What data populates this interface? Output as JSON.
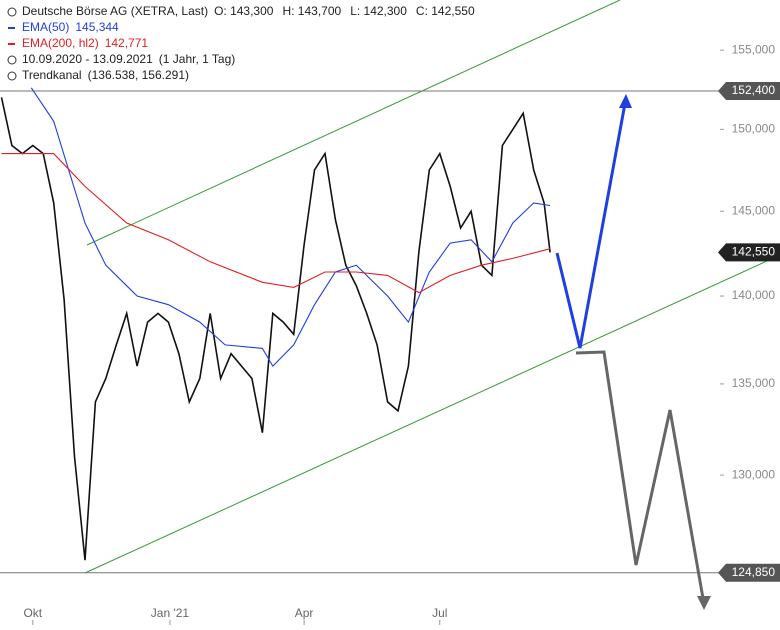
{
  "chart_data": {
    "type": "line",
    "legend": [
      {
        "text": "Deutsche Börse AG (XETRA, Last)",
        "stats": [
          "O: 143,300",
          "H: 143,700",
          "L: 142,300",
          "C: 142,550"
        ]
      },
      {
        "text": "EMA(50)",
        "value": "145,344",
        "color": "#1f3fe0"
      },
      {
        "text": "EMA(200, hl2)",
        "value": "142,771",
        "color": "#e02020"
      },
      {
        "text": "10.09.2020 - 13.09.2021",
        "value": "(1 Jahr, 1 Tag)"
      },
      {
        "text": "Trendkanal",
        "value": "(136.538, 156.291)"
      }
    ],
    "log_scale": true,
    "xlim": [
      -1,
      482
    ],
    "xticks": [
      {
        "value": 21,
        "label": "Okt"
      },
      {
        "value": 113,
        "label": "Jan '21"
      },
      {
        "value": 203,
        "label": "Apr"
      },
      {
        "value": 294,
        "label": "Jul"
      }
    ],
    "ylim": [
      123450,
      158250
    ],
    "yticks": [
      {
        "value": 130000,
        "label": "130,000"
      },
      {
        "value": 135000,
        "label": "135,000"
      },
      {
        "value": 140000,
        "label": "140,000"
      },
      {
        "value": 145000,
        "label": "145,000"
      },
      {
        "value": 150000,
        "label": "150,000"
      },
      {
        "value": 155000,
        "label": "155,000"
      }
    ],
    "price_labels": [
      {
        "value": 152400,
        "label": "152,400"
      },
      {
        "value": 142550,
        "label": "142,550"
      },
      {
        "value": 124850,
        "label": "124,850"
      }
    ],
    "series": [
      {
        "name": "Deutsche Börse AG",
        "color": "#111111",
        "x": [
          0,
          7,
          14,
          21,
          28,
          35,
          42,
          49,
          56,
          63,
          70,
          77,
          84,
          91,
          98,
          105,
          112,
          119,
          126,
          133,
          140,
          147,
          154,
          161,
          168,
          175,
          182,
          189,
          196,
          203,
          210,
          217,
          224,
          231,
          238,
          245,
          252,
          259,
          266,
          273,
          280,
          287,
          294,
          301,
          308,
          315,
          322,
          329,
          336,
          343,
          350,
          357,
          364,
          368
        ],
        "values": [
          152000,
          149000,
          148500,
          149000,
          148500,
          145500,
          139800,
          131000,
          125500,
          134000,
          135300,
          137200,
          139000,
          136000,
          138500,
          139000,
          138500,
          136700,
          134000,
          135300,
          139000,
          135300,
          136700,
          136000,
          135300,
          132300,
          139000,
          138500,
          137800,
          143000,
          147500,
          148500,
          144500,
          141800,
          140600,
          139000,
          137200,
          134000,
          133500,
          136000,
          142600,
          147500,
          148500,
          146500,
          144000,
          145000,
          141800,
          141200,
          149000,
          150000,
          151000,
          147500,
          145500,
          142550
        ]
      },
      {
        "name": "EMA(50)",
        "color": "#1f3fe0",
        "x": [
          20,
          35,
          56,
          70,
          91,
          112,
          133,
          150,
          175,
          182,
          196,
          210,
          224,
          238,
          259,
          273,
          287,
          301,
          315,
          329,
          343,
          357,
          368
        ],
        "values": [
          152600,
          150500,
          144300,
          141800,
          140000,
          139500,
          138500,
          137200,
          137000,
          136000,
          137200,
          139500,
          141400,
          141800,
          140000,
          138500,
          141400,
          143100,
          143300,
          142000,
          144300,
          145500,
          145344
        ]
      },
      {
        "name": "EMA(200, hl2)",
        "color": "#e02020",
        "x": [
          0,
          35,
          56,
          84,
          112,
          140,
          175,
          196,
          217,
          238,
          259,
          280,
          301,
          322,
          343,
          368
        ],
        "values": [
          148500,
          148500,
          146500,
          144300,
          143300,
          142000,
          140800,
          140500,
          141400,
          141400,
          141200,
          140200,
          141200,
          141800,
          142200,
          142771
        ]
      }
    ]
  }
}
